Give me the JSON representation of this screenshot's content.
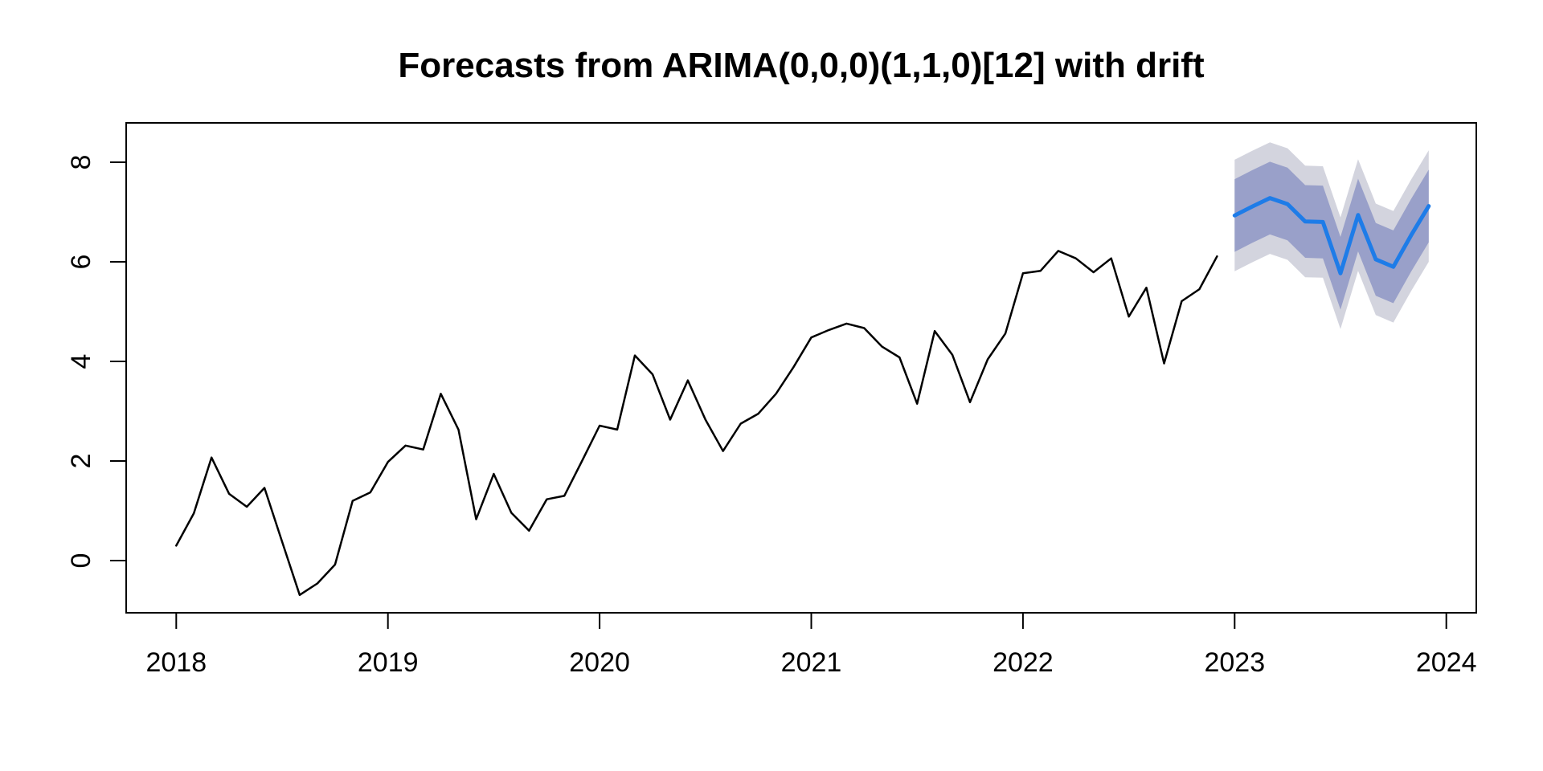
{
  "chart_data": {
    "type": "line",
    "title": "Forecasts from ARIMA(0,0,0)(1,1,0)[12] with drift",
    "grid": false,
    "legend": "none",
    "x_axis": {
      "tick_labels": [
        2018,
        2019,
        2020,
        2021,
        2022,
        2023,
        2024
      ],
      "range_years": [
        2017.76,
        2024.24
      ]
    },
    "y_axis": {
      "tick_labels": [
        0,
        2,
        4,
        6,
        8
      ],
      "range": [
        -1.05,
        8.75
      ]
    },
    "series": [
      {
        "name": "observed",
        "type": "line",
        "color": "#000000",
        "start": "2018-01",
        "frequency": "monthly",
        "values": [
          0.3,
          0.95,
          2.07,
          1.34,
          1.08,
          1.46,
          0.38,
          -0.69,
          -0.46,
          -0.08,
          1.2,
          1.37,
          1.98,
          2.31,
          2.23,
          3.35,
          2.63,
          0.83,
          1.74,
          0.96,
          0.6,
          1.23,
          1.3,
          2.0,
          2.71,
          2.63,
          4.12,
          3.74,
          2.83,
          3.62,
          2.83,
          2.2,
          2.75,
          2.95,
          3.35,
          3.89,
          4.48,
          4.63,
          4.76,
          4.67,
          4.3,
          4.08,
          3.15,
          4.61,
          4.13,
          3.18,
          4.04,
          4.56,
          5.77,
          5.82,
          6.22,
          6.07,
          5.79,
          6.07,
          4.9,
          5.48,
          3.96,
          5.21,
          5.45,
          6.11
        ]
      },
      {
        "name": "point-forecast",
        "type": "line",
        "color": "#1E7CE8",
        "start": "2023-01",
        "frequency": "monthly",
        "values": [
          6.93,
          7.11,
          7.28,
          7.16,
          6.81,
          6.8,
          5.77,
          6.94,
          6.05,
          5.9,
          6.53,
          7.12
        ]
      }
    ],
    "bands": [
      {
        "name": "95%-interval",
        "color": "#D3D4DE",
        "start": "2023-01",
        "lo": [
          5.81,
          5.99,
          6.16,
          6.04,
          5.69,
          5.68,
          4.65,
          5.82,
          4.93,
          4.78,
          5.41,
          6.0
        ],
        "hi": [
          8.05,
          8.23,
          8.4,
          8.28,
          7.93,
          7.92,
          6.89,
          8.06,
          7.17,
          7.02,
          7.65,
          8.24
        ]
      },
      {
        "name": "80%-interval",
        "color": "#99A0C9",
        "start": "2023-01",
        "lo": [
          6.2,
          6.38,
          6.55,
          6.43,
          6.08,
          6.07,
          5.04,
          6.21,
          5.32,
          5.17,
          5.8,
          6.39
        ],
        "hi": [
          7.66,
          7.84,
          8.01,
          7.89,
          7.54,
          7.53,
          6.5,
          7.67,
          6.78,
          6.63,
          7.26,
          7.85
        ]
      }
    ]
  }
}
